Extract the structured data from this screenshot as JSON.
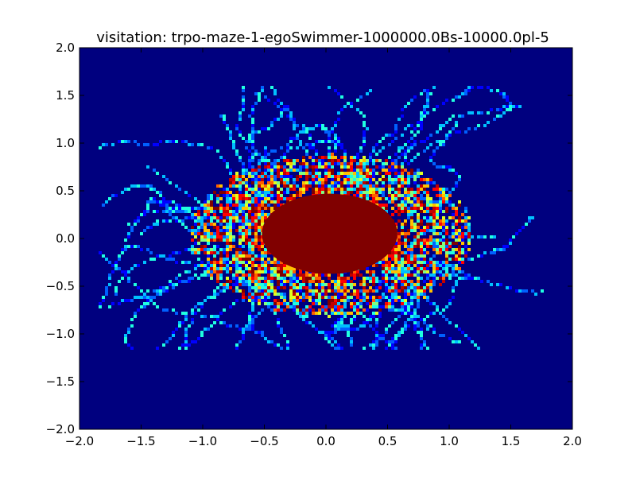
{
  "chart_data": {
    "type": "heatmap",
    "title": "visitation: trpo-maze-1-egoSwimmer-1000000.0Bs-10000.0pl-5",
    "xlabel": "",
    "ylabel": "",
    "xlim": [
      -2.0,
      2.0
    ],
    "ylim": [
      -2.0,
      2.0
    ],
    "xticks": [
      -2.0,
      -1.5,
      -1.0,
      -0.5,
      0.0,
      0.5,
      1.0,
      1.5,
      2.0
    ],
    "yticks": [
      -2.0,
      -1.5,
      -1.0,
      -0.5,
      0.0,
      0.5,
      1.0,
      1.5,
      2.0
    ],
    "xtick_labels": [
      "−2.0",
      "−1.5",
      "−1.0",
      "−0.5",
      "0.0",
      "0.5",
      "1.0",
      "1.5",
      "2.0"
    ],
    "ytick_labels": [
      "−2.0",
      "−1.5",
      "−1.0",
      "−0.5",
      "0.0",
      "0.5",
      "1.0",
      "1.5",
      "2.0"
    ],
    "colormap": "jet",
    "background_color": "#00007f",
    "grid": false,
    "legend": "none",
    "core_region": {
      "description": "saturated (max visitation) dark-red blob",
      "center": [
        0.03,
        0.05
      ],
      "radius_x": 0.55,
      "radius_y": 0.42,
      "color": "#800000"
    },
    "trajectory_extent": {
      "x": [
        -1.85,
        1.75
      ],
      "y": [
        -1.15,
        1.6
      ]
    }
  }
}
